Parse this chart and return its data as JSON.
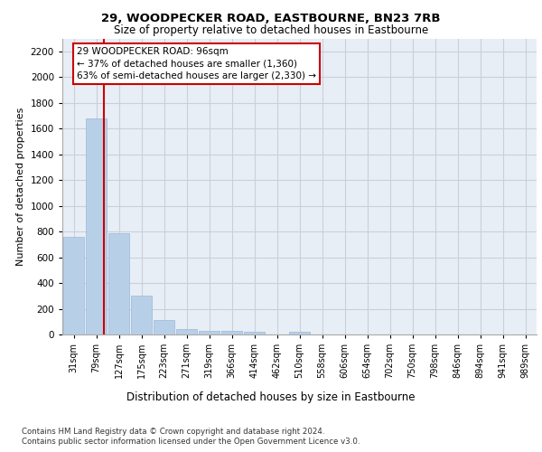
{
  "title1": "29, WOODPECKER ROAD, EASTBOURNE, BN23 7RB",
  "title2": "Size of property relative to detached houses in Eastbourne",
  "xlabel": "Distribution of detached houses by size in Eastbourne",
  "ylabel": "Number of detached properties",
  "categories": [
    "31sqm",
    "79sqm",
    "127sqm",
    "175sqm",
    "223sqm",
    "271sqm",
    "319sqm",
    "366sqm",
    "414sqm",
    "462sqm",
    "510sqm",
    "558sqm",
    "606sqm",
    "654sqm",
    "702sqm",
    "750sqm",
    "798sqm",
    "846sqm",
    "894sqm",
    "941sqm",
    "989sqm"
  ],
  "values": [
    760,
    1680,
    790,
    300,
    110,
    42,
    30,
    25,
    20,
    0,
    22,
    0,
    0,
    0,
    0,
    0,
    0,
    0,
    0,
    0,
    0
  ],
  "bar_color": "#b8cfe8",
  "bar_edgecolor": "#9ab8d8",
  "vline_color": "#cc0000",
  "vline_pos": 1.35,
  "annotation_title": "29 WOODPECKER ROAD: 96sqm",
  "annotation_line2": "← 37% of detached houses are smaller (1,360)",
  "annotation_line3": "63% of semi-detached houses are larger (2,330) →",
  "annotation_box_edgecolor": "#cc0000",
  "ylim": [
    0,
    2300
  ],
  "yticks": [
    0,
    200,
    400,
    600,
    800,
    1000,
    1200,
    1400,
    1600,
    1800,
    2000,
    2200
  ],
  "footer1": "Contains HM Land Registry data © Crown copyright and database right 2024.",
  "footer2": "Contains public sector information licensed under the Open Government Licence v3.0.",
  "plot_bg_color": "#e8eef5",
  "grid_color": "#c8d0dc"
}
